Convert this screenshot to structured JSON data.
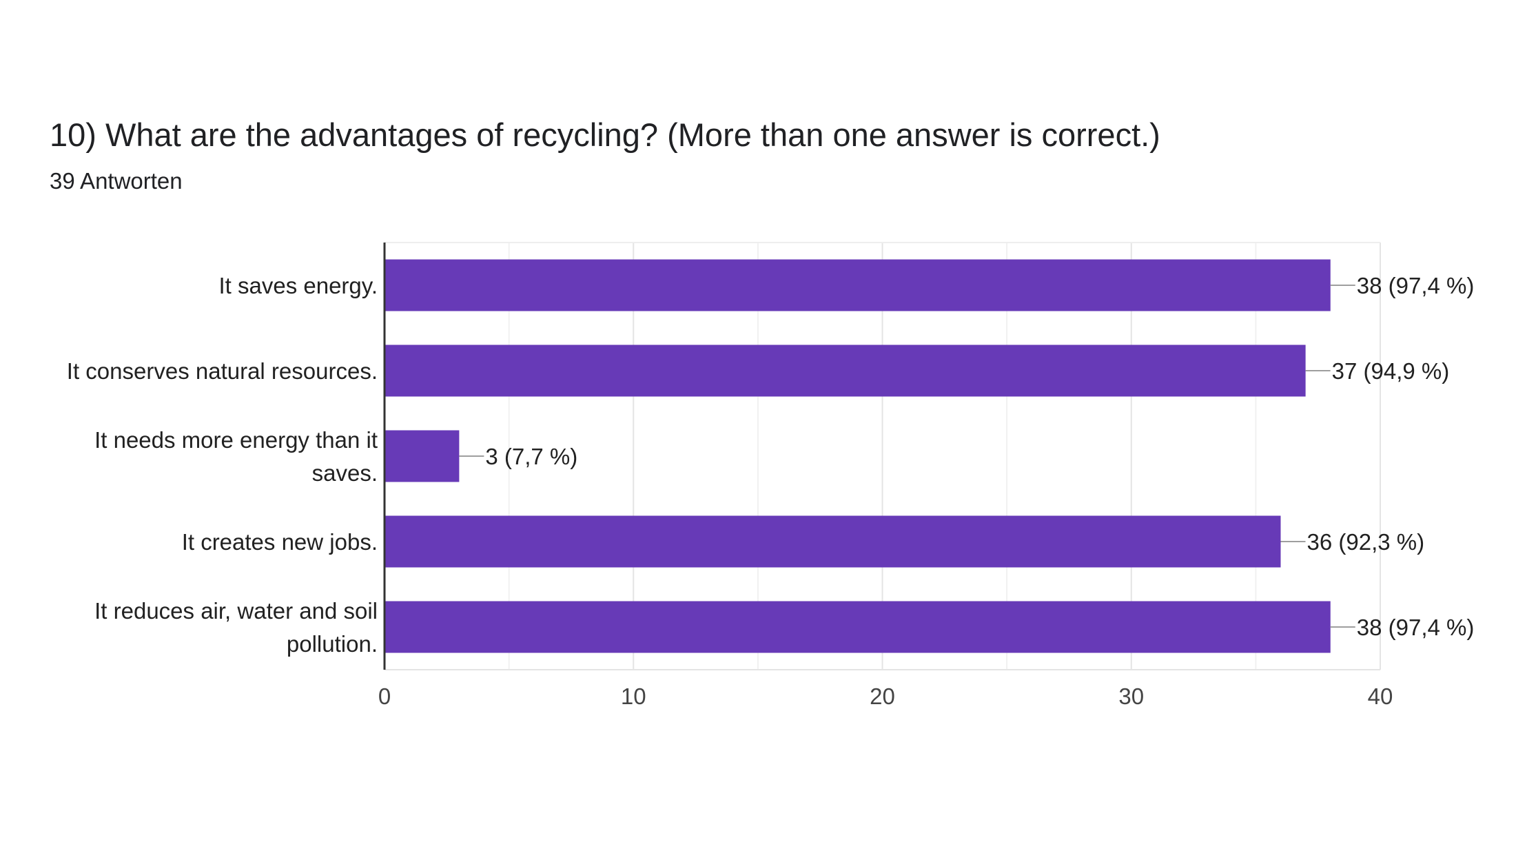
{
  "question": {
    "title": "10) What are the advantages of recycling? (More than one answer is correct.)",
    "responses": "39 Antworten"
  },
  "colors": {
    "bar": "#673ab7",
    "grid": "#e6e6e6",
    "axis": "#333333",
    "leader": "#9e9e9e",
    "text": "#212121"
  },
  "chart_data": {
    "type": "bar",
    "orientation": "horizontal",
    "title": "10) What are the advantages of recycling? (More than one answer is correct.)",
    "subtitle": "39 Antworten",
    "categories": [
      [
        "It saves energy."
      ],
      [
        "It conserves natural resources."
      ],
      [
        "It needs more energy than it",
        "saves."
      ],
      [
        "It creates new jobs."
      ],
      [
        "It reduces air, water and soil",
        "pollution."
      ]
    ],
    "values": [
      38,
      37,
      3,
      36,
      38
    ],
    "data_labels": [
      "38 (97,4 %)",
      "37 (94,9 %)",
      "3 (7,7 %)",
      "36 (92,3 %)",
      "38 (97,4 %)"
    ],
    "xlim": [
      0,
      40
    ],
    "xticks": [
      0,
      10,
      20,
      30,
      40
    ],
    "xtick_labels": [
      "0",
      "10",
      "20",
      "30",
      "40"
    ],
    "grid": true,
    "legend": "none"
  }
}
